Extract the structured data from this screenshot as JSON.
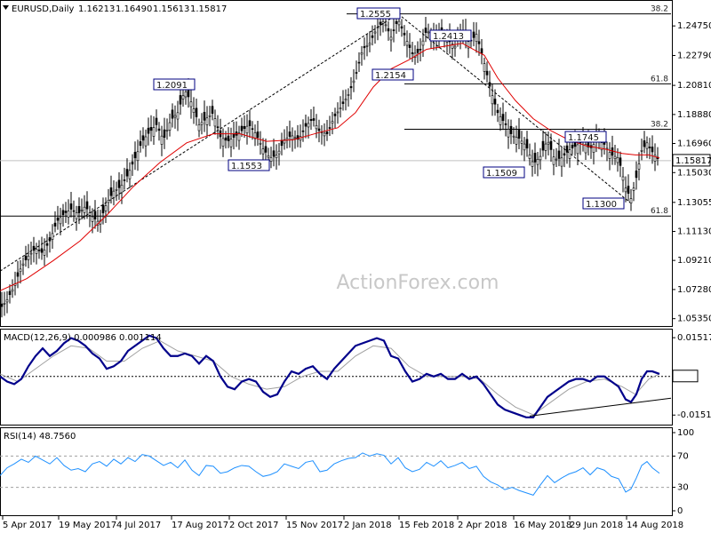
{
  "chart_data": {
    "type": "candlestick",
    "symbol": "EURUSD,Daily",
    "ohlc": {
      "open": "1.16213",
      "high": "1.16490",
      "low": "1.15613",
      "close": "1.15817"
    },
    "watermark": "ActionForex.com",
    "price_range": [
      1.0492,
      1.2635
    ],
    "price_ticks": [
      "1.24750",
      "1.22790",
      "1.20810",
      "1.18880",
      "1.16960",
      "1.15030",
      "1.13055",
      "1.11130",
      "1.09210",
      "1.07280",
      "1.05350"
    ],
    "current_price": "1.15817",
    "x_tick_labels": [
      "5 Apr 2017",
      "19 May 2017",
      "4 Jul 2017",
      "17 Aug 2017",
      "2 Oct 2017",
      "15 Nov 2017",
      "2 Jan 2018",
      "15 Feb 2018",
      "2 Apr 2018",
      "16 May 2018",
      "29 Jun 2018",
      "14 Aug 2018"
    ],
    "price_series_path": [
      [
        0,
        1.06
      ],
      [
        8,
        1.066
      ],
      [
        16,
        1.075
      ],
      [
        24,
        1.088
      ],
      [
        32,
        1.095
      ],
      [
        40,
        1.1
      ],
      [
        48,
        1.097
      ],
      [
        56,
        1.105
      ],
      [
        64,
        1.118
      ],
      [
        72,
        1.123
      ],
      [
        80,
        1.126
      ],
      [
        88,
        1.123
      ],
      [
        96,
        1.128
      ],
      [
        104,
        1.121
      ],
      [
        112,
        1.117
      ],
      [
        120,
        1.13
      ],
      [
        128,
        1.138
      ],
      [
        136,
        1.141
      ],
      [
        144,
        1.149
      ],
      [
        152,
        1.16
      ],
      [
        160,
        1.171
      ],
      [
        168,
        1.177
      ],
      [
        176,
        1.182
      ],
      [
        184,
        1.172
      ],
      [
        192,
        1.185
      ],
      [
        200,
        1.19
      ],
      [
        208,
        1.205
      ],
      [
        216,
        1.196
      ],
      [
        224,
        1.182
      ],
      [
        232,
        1.186
      ],
      [
        240,
        1.19
      ],
      [
        248,
        1.174
      ],
      [
        256,
        1.171
      ],
      [
        264,
        1.174
      ],
      [
        272,
        1.178
      ],
      [
        280,
        1.182
      ],
      [
        288,
        1.176
      ],
      [
        296,
        1.166
      ],
      [
        304,
        1.16
      ],
      [
        312,
        1.162
      ],
      [
        320,
        1.172
      ],
      [
        328,
        1.175
      ],
      [
        336,
        1.172
      ],
      [
        344,
        1.181
      ],
      [
        352,
        1.186
      ],
      [
        360,
        1.177
      ],
      [
        368,
        1.176
      ],
      [
        376,
        1.187
      ],
      [
        384,
        1.194
      ],
      [
        392,
        1.202
      ],
      [
        400,
        1.214
      ],
      [
        408,
        1.232
      ],
      [
        416,
        1.236
      ],
      [
        424,
        1.246
      ],
      [
        432,
        1.251
      ],
      [
        440,
        1.24
      ],
      [
        448,
        1.252
      ],
      [
        456,
        1.24
      ],
      [
        464,
        1.229
      ],
      [
        472,
        1.23
      ],
      [
        480,
        1.245
      ],
      [
        488,
        1.239
      ],
      [
        496,
        1.243
      ],
      [
        504,
        1.238
      ],
      [
        512,
        1.234
      ],
      [
        520,
        1.245
      ],
      [
        528,
        1.236
      ],
      [
        536,
        1.242
      ],
      [
        544,
        1.225
      ],
      [
        552,
        1.205
      ],
      [
        560,
        1.19
      ],
      [
        568,
        1.183
      ],
      [
        576,
        1.175
      ],
      [
        584,
        1.173
      ],
      [
        592,
        1.168
      ],
      [
        600,
        1.156
      ],
      [
        608,
        1.161
      ],
      [
        616,
        1.172
      ],
      [
        624,
        1.159
      ],
      [
        632,
        1.16
      ],
      [
        640,
        1.165
      ],
      [
        648,
        1.168
      ],
      [
        656,
        1.171
      ],
      [
        664,
        1.166
      ],
      [
        672,
        1.172
      ],
      [
        680,
        1.169
      ],
      [
        688,
        1.162
      ],
      [
        696,
        1.16
      ],
      [
        704,
        1.14
      ],
      [
        710,
        1.133
      ],
      [
        716,
        1.147
      ],
      [
        722,
        1.165
      ],
      [
        728,
        1.17
      ],
      [
        734,
        1.164
      ],
      [
        742,
        1.158
      ]
    ],
    "sma": {
      "values_path": [
        [
          0,
          1.072
        ],
        [
          30,
          1.08
        ],
        [
          60,
          1.092
        ],
        [
          90,
          1.105
        ],
        [
          120,
          1.122
        ],
        [
          150,
          1.141
        ],
        [
          180,
          1.157
        ],
        [
          210,
          1.17
        ],
        [
          240,
          1.176
        ],
        [
          270,
          1.176
        ],
        [
          300,
          1.171
        ],
        [
          330,
          1.172
        ],
        [
          360,
          1.177
        ],
        [
          380,
          1.18
        ],
        [
          400,
          1.19
        ],
        [
          420,
          1.207
        ],
        [
          440,
          1.219
        ],
        [
          460,
          1.225
        ],
        [
          480,
          1.232
        ],
        [
          500,
          1.234
        ],
        [
          520,
          1.236
        ],
        [
          545,
          1.228
        ],
        [
          560,
          1.213
        ],
        [
          580,
          1.198
        ],
        [
          600,
          1.186
        ],
        [
          620,
          1.178
        ],
        [
          640,
          1.172
        ],
        [
          660,
          1.168
        ],
        [
          680,
          1.166
        ],
        [
          700,
          1.163
        ],
        [
          715,
          1.162
        ],
        [
          730,
          1.162
        ],
        [
          742,
          1.16
        ]
      ]
    },
    "levels": [
      {
        "label": "1.2555",
        "value": 1.2555
      },
      {
        "label": "1.2413",
        "value": 1.2413
      },
      {
        "label": "1.2154",
        "value": 1.2154
      },
      {
        "label": "1.2091",
        "value": 1.2091
      },
      {
        "label": "1.1553",
        "value": 1.1553
      },
      {
        "label": "1.1509",
        "value": 1.1509
      },
      {
        "label": "1.1300",
        "value": 1.13
      },
      {
        "label": "1.1745",
        "value": 1.1745
      }
    ],
    "fib_lines": [
      {
        "label": "38.2",
        "value": 1.2555
      },
      {
        "label": "61.8",
        "value": 1.2091
      },
      {
        "label": "38.2",
        "value": 1.179
      },
      {
        "label": "61.8",
        "value": 1.1215
      }
    ],
    "macd": {
      "label": "MACD(12,26,9) 0.000986 0.001114",
      "range": [
        -0.0185,
        0.018
      ],
      "ticks": [
        "0.015176",
        "0.00",
        "-0.015109"
      ],
      "macd_path": [
        [
          0,
          0.0
        ],
        [
          8,
          -0.002
        ],
        [
          16,
          -0.003
        ],
        [
          24,
          -0.001
        ],
        [
          32,
          0.004
        ],
        [
          40,
          0.008
        ],
        [
          48,
          0.011
        ],
        [
          56,
          0.008
        ],
        [
          64,
          0.01
        ],
        [
          72,
          0.013
        ],
        [
          80,
          0.015
        ],
        [
          88,
          0.014
        ],
        [
          96,
          0.012
        ],
        [
          104,
          0.009
        ],
        [
          112,
          0.007
        ],
        [
          120,
          0.003
        ],
        [
          128,
          0.004
        ],
        [
          136,
          0.006
        ],
        [
          144,
          0.01
        ],
        [
          152,
          0.012
        ],
        [
          160,
          0.014
        ],
        [
          168,
          0.016
        ],
        [
          176,
          0.015
        ],
        [
          184,
          0.011
        ],
        [
          192,
          0.008
        ],
        [
          200,
          0.008
        ],
        [
          208,
          0.009
        ],
        [
          216,
          0.008
        ],
        [
          224,
          0.005
        ],
        [
          232,
          0.008
        ],
        [
          240,
          0.006
        ],
        [
          248,
          0.0
        ],
        [
          256,
          -0.004
        ],
        [
          264,
          -0.005
        ],
        [
          272,
          -0.002
        ],
        [
          280,
          -0.001
        ],
        [
          288,
          -0.002
        ],
        [
          296,
          -0.006
        ],
        [
          304,
          -0.008
        ],
        [
          312,
          -0.007
        ],
        [
          320,
          -0.002
        ],
        [
          328,
          0.002
        ],
        [
          336,
          0.001
        ],
        [
          344,
          0.003
        ],
        [
          352,
          0.004
        ],
        [
          360,
          0.001
        ],
        [
          368,
          -0.001
        ],
        [
          376,
          0.003
        ],
        [
          384,
          0.006
        ],
        [
          392,
          0.009
        ],
        [
          400,
          0.012
        ],
        [
          408,
          0.013
        ],
        [
          416,
          0.014
        ],
        [
          424,
          0.015
        ],
        [
          432,
          0.014
        ],
        [
          440,
          0.008
        ],
        [
          448,
          0.007
        ],
        [
          456,
          0.002
        ],
        [
          464,
          -0.002
        ],
        [
          472,
          -0.001
        ],
        [
          480,
          0.001
        ],
        [
          488,
          0.0
        ],
        [
          496,
          0.001
        ],
        [
          504,
          -0.001
        ],
        [
          512,
          -0.001
        ],
        [
          520,
          0.001
        ],
        [
          528,
          -0.001
        ],
        [
          536,
          0.0
        ],
        [
          544,
          -0.003
        ],
        [
          552,
          -0.007
        ],
        [
          560,
          -0.011
        ],
        [
          568,
          -0.013
        ],
        [
          576,
          -0.014
        ],
        [
          584,
          -0.015
        ],
        [
          592,
          -0.016
        ],
        [
          600,
          -0.016
        ],
        [
          608,
          -0.012
        ],
        [
          616,
          -0.008
        ],
        [
          624,
          -0.006
        ],
        [
          632,
          -0.004
        ],
        [
          640,
          -0.002
        ],
        [
          648,
          -0.001
        ],
        [
          656,
          -0.001
        ],
        [
          664,
          -0.002
        ],
        [
          672,
          0.0
        ],
        [
          680,
          0.0
        ],
        [
          688,
          -0.002
        ],
        [
          696,
          -0.004
        ],
        [
          704,
          -0.009
        ],
        [
          710,
          -0.01
        ],
        [
          716,
          -0.007
        ],
        [
          722,
          -0.001
        ],
        [
          728,
          0.002
        ],
        [
          734,
          0.002
        ],
        [
          742,
          0.001
        ]
      ],
      "signal_path": [
        [
          0,
          0.001
        ],
        [
          20,
          -0.002
        ],
        [
          40,
          0.003
        ],
        [
          60,
          0.008
        ],
        [
          80,
          0.012
        ],
        [
          100,
          0.011
        ],
        [
          120,
          0.006
        ],
        [
          140,
          0.006
        ],
        [
          160,
          0.011
        ],
        [
          180,
          0.014
        ],
        [
          200,
          0.01
        ],
        [
          220,
          0.008
        ],
        [
          240,
          0.006
        ],
        [
          260,
          0.0
        ],
        [
          280,
          -0.003
        ],
        [
          300,
          -0.005
        ],
        [
          320,
          -0.004
        ],
        [
          340,
          0.0
        ],
        [
          360,
          0.002
        ],
        [
          380,
          0.002
        ],
        [
          400,
          0.008
        ],
        [
          420,
          0.012
        ],
        [
          440,
          0.011
        ],
        [
          460,
          0.004
        ],
        [
          480,
          0.0
        ],
        [
          500,
          0.0
        ],
        [
          520,
          0.0
        ],
        [
          540,
          -0.001
        ],
        [
          560,
          -0.007
        ],
        [
          580,
          -0.012
        ],
        [
          600,
          -0.015
        ],
        [
          620,
          -0.01
        ],
        [
          640,
          -0.005
        ],
        [
          660,
          -0.002
        ],
        [
          680,
          -0.001
        ],
        [
          700,
          -0.004
        ],
        [
          715,
          -0.007
        ],
        [
          730,
          -0.001
        ],
        [
          742,
          0.001
        ]
      ],
      "trendline": [
        [
          596,
          -0.0155
        ],
        [
          760,
          -0.0085
        ]
      ]
    },
    "rsi": {
      "label": "RSI(14) 48.7560",
      "range": [
        0,
        100
      ],
      "ticks": [
        "100",
        "70",
        "30",
        "0"
      ],
      "path": [
        [
          0,
          45
        ],
        [
          8,
          55
        ],
        [
          16,
          60
        ],
        [
          24,
          66
        ],
        [
          32,
          62
        ],
        [
          40,
          70
        ],
        [
          48,
          65
        ],
        [
          56,
          60
        ],
        [
          64,
          68
        ],
        [
          72,
          58
        ],
        [
          80,
          52
        ],
        [
          88,
          54
        ],
        [
          96,
          50
        ],
        [
          104,
          60
        ],
        [
          112,
          63
        ],
        [
          120,
          57
        ],
        [
          128,
          66
        ],
        [
          136,
          60
        ],
        [
          144,
          68
        ],
        [
          152,
          63
        ],
        [
          160,
          72
        ],
        [
          168,
          70
        ],
        [
          176,
          64
        ],
        [
          184,
          58
        ],
        [
          192,
          62
        ],
        [
          200,
          55
        ],
        [
          208,
          65
        ],
        [
          216,
          52
        ],
        [
          224,
          45
        ],
        [
          232,
          58
        ],
        [
          240,
          57
        ],
        [
          248,
          48
        ],
        [
          256,
          50
        ],
        [
          264,
          55
        ],
        [
          272,
          58
        ],
        [
          280,
          57
        ],
        [
          288,
          50
        ],
        [
          296,
          44
        ],
        [
          304,
          46
        ],
        [
          312,
          50
        ],
        [
          320,
          60
        ],
        [
          328,
          57
        ],
        [
          336,
          54
        ],
        [
          344,
          62
        ],
        [
          352,
          64
        ],
        [
          360,
          50
        ],
        [
          368,
          52
        ],
        [
          376,
          60
        ],
        [
          384,
          64
        ],
        [
          392,
          67
        ],
        [
          400,
          68
        ],
        [
          408,
          74
        ],
        [
          416,
          70
        ],
        [
          424,
          73
        ],
        [
          432,
          71
        ],
        [
          440,
          60
        ],
        [
          448,
          68
        ],
        [
          456,
          55
        ],
        [
          464,
          50
        ],
        [
          472,
          53
        ],
        [
          480,
          62
        ],
        [
          488,
          57
        ],
        [
          496,
          64
        ],
        [
          504,
          55
        ],
        [
          512,
          58
        ],
        [
          520,
          62
        ],
        [
          528,
          54
        ],
        [
          536,
          57
        ],
        [
          544,
          44
        ],
        [
          552,
          37
        ],
        [
          560,
          33
        ],
        [
          568,
          27
        ],
        [
          576,
          30
        ],
        [
          584,
          26
        ],
        [
          592,
          23
        ],
        [
          600,
          20
        ],
        [
          608,
          33
        ],
        [
          616,
          45
        ],
        [
          624,
          36
        ],
        [
          632,
          42
        ],
        [
          640,
          47
        ],
        [
          648,
          50
        ],
        [
          656,
          55
        ],
        [
          664,
          46
        ],
        [
          672,
          55
        ],
        [
          680,
          52
        ],
        [
          688,
          44
        ],
        [
          696,
          41
        ],
        [
          704,
          24
        ],
        [
          710,
          28
        ],
        [
          716,
          42
        ],
        [
          722,
          58
        ],
        [
          728,
          63
        ],
        [
          734,
          55
        ],
        [
          742,
          48
        ]
      ]
    }
  }
}
